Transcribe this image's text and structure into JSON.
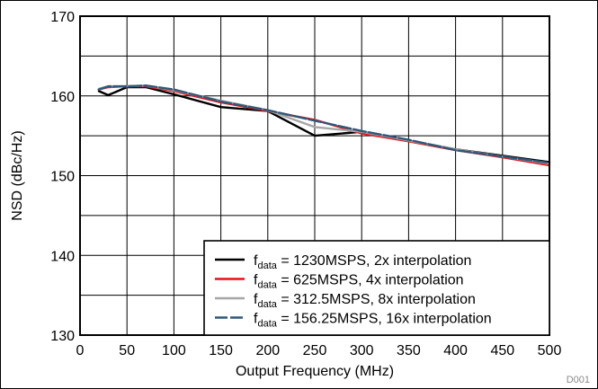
{
  "chart_data": {
    "type": "line",
    "xlabel": "Output Frequency (MHz)",
    "ylabel": "NSD (dBc/Hz)",
    "xlim": [
      0,
      500
    ],
    "ylim": [
      130,
      170
    ],
    "xticks": [
      0,
      50,
      100,
      150,
      200,
      250,
      300,
      350,
      400,
      450,
      500
    ],
    "yticks": [
      130,
      140,
      150,
      160,
      170
    ],
    "grid": true,
    "legend_position": "bottom-right",
    "figure_code": "D001",
    "series": [
      {
        "name_sub": "data",
        "name_rest": " = 1230MSPS, 2x interpolation",
        "color": "#000000",
        "x": [
          20,
          30,
          50,
          70,
          100,
          150,
          200,
          250,
          300,
          350,
          400,
          450,
          500
        ],
        "y": [
          160.6,
          160.1,
          161.1,
          161.1,
          160.2,
          158.6,
          158.1,
          155.0,
          155.5,
          154.4,
          153.3,
          152.5,
          151.7
        ]
      },
      {
        "name_sub": "data",
        "name_rest": " = 625MSPS, 4x interpolation",
        "color": "#e8101a",
        "x": [
          20,
          30,
          50,
          70,
          100,
          150,
          200,
          250,
          300,
          350,
          400,
          450,
          500
        ],
        "y": [
          160.8,
          161.1,
          161.2,
          161.2,
          160.6,
          159.2,
          158.1,
          157.0,
          155.3,
          154.3,
          153.2,
          152.3,
          151.3
        ]
      },
      {
        "name_sub": "data",
        "name_rest": " = 312.5MSPS, 8x interpolation",
        "color": "#a6a6a6",
        "x": [
          20,
          30,
          50,
          70,
          100,
          150,
          200,
          250,
          300,
          350,
          400,
          450,
          500
        ],
        "y": [
          160.9,
          161.2,
          161.2,
          161.3,
          160.7,
          159.4,
          158.2,
          156.1,
          155.5,
          154.4,
          153.3,
          152.4,
          151.5
        ]
      },
      {
        "name_sub": "data",
        "name_rest": " = 156.25MSPS, 16x interpolation",
        "color": "#2f5878",
        "x": [
          20,
          30,
          50,
          70,
          100,
          150,
          200,
          250,
          300,
          350,
          400,
          450,
          500
        ],
        "y": [
          160.8,
          161.2,
          161.2,
          161.3,
          160.8,
          159.3,
          158.2,
          156.9,
          155.6,
          154.5,
          153.2,
          152.4,
          151.6
        ]
      }
    ]
  }
}
